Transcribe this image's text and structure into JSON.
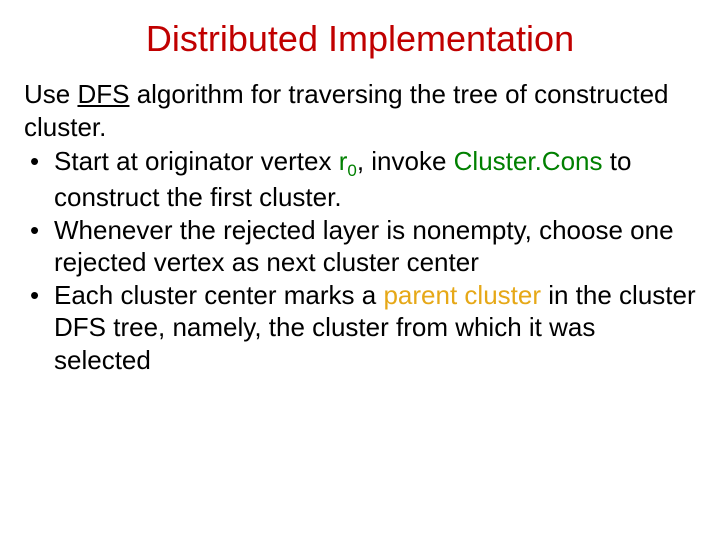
{
  "colors": {
    "title": "#c00000",
    "body": "#000000",
    "green": "#008000",
    "orange": "#e6a817"
  },
  "title": "Distributed Implementation",
  "intro": {
    "pre": "Use ",
    "dfs": "DFS",
    "post": " algorithm for traversing the tree of constructed cluster."
  },
  "b1": {
    "pre": "Start at originator vertex ",
    "r": "r",
    "rsub": "0",
    "mid": ", invoke ",
    "cc": "Cluster.Cons",
    "post": " to construct the first cluster."
  },
  "b2": "Whenever the rejected layer is nonempty, choose one rejected vertex as next cluster center",
  "b3": {
    "pre": "Each cluster center marks a ",
    "pc": "parent cluster",
    "post": " in the cluster DFS tree, namely, the cluster from which it was selected"
  }
}
